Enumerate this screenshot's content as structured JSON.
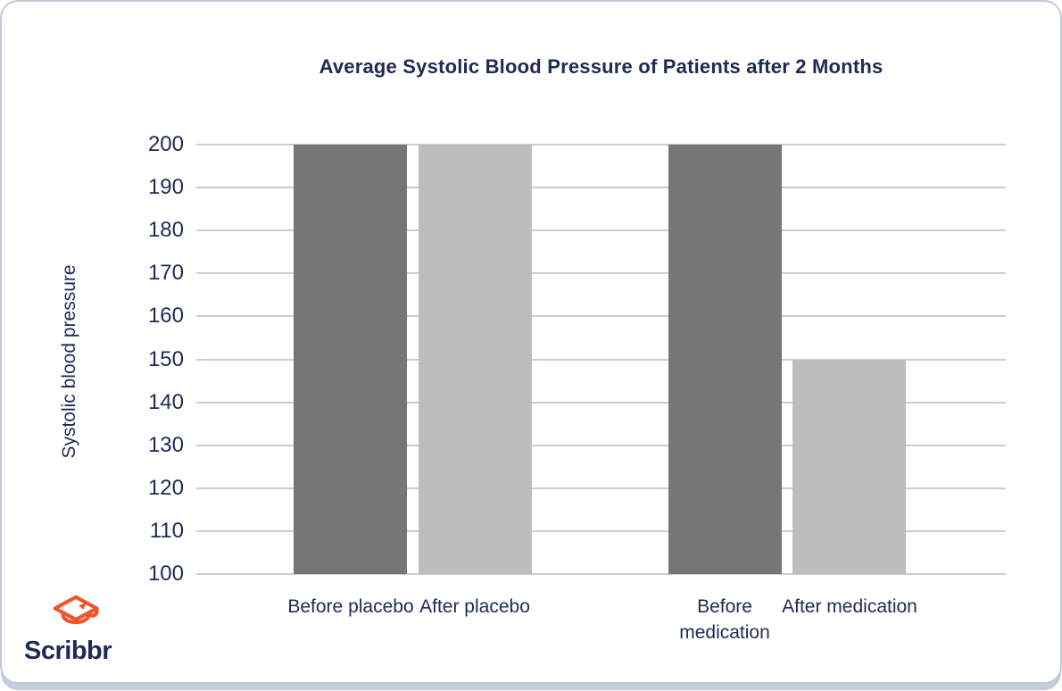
{
  "logo": {
    "brand_text": "Scribbr",
    "icon": "graduation-cap-icon",
    "icon_color": "#f4532a"
  },
  "colors": {
    "navy_text": "#1f2a55",
    "bar_dark": "#767676",
    "bar_light": "#bdbdbd",
    "gridline": "#c9cede",
    "card_border": "#c3c9da",
    "background": "#ffffff"
  },
  "chart_data": {
    "type": "bar",
    "title": "Average Systolic Blood Pressure of Patients after 2 Months",
    "ylabel": "Systolic blood pressure",
    "xlabel": "",
    "categories": [
      "Before placebo",
      "After placebo",
      "Before medication",
      "After medication"
    ],
    "values": [
      200,
      200,
      200,
      150
    ],
    "bar_styles": [
      "dark",
      "light",
      "dark",
      "light"
    ],
    "groups": [
      [
        "Before placebo",
        "After placebo"
      ],
      [
        "Before medication",
        "After medication"
      ]
    ],
    "ylim": [
      100,
      200
    ],
    "yticks": [
      200,
      190,
      180,
      170,
      160,
      150,
      140,
      130,
      120,
      110,
      100
    ],
    "grid": "horizontal",
    "legend_position": "none"
  }
}
